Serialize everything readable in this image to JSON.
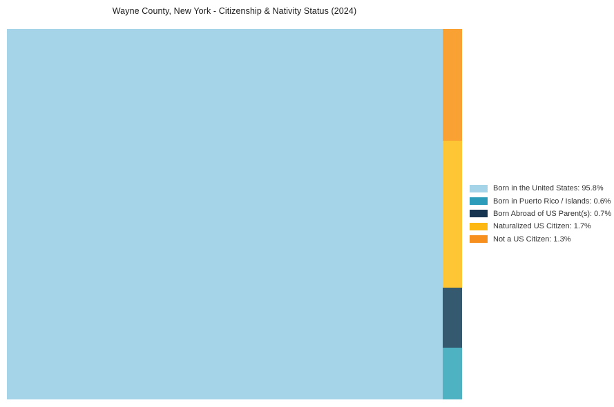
{
  "title": "Wayne County, New York - Citizenship & Nativity Status (2024)",
  "chart_data": {
    "type": "treemap",
    "title": "Wayne County, New York - Citizenship & Nativity Status (2024)",
    "unit": "%",
    "legend_position": "right",
    "layout_hint": "single large block for largest category on left; remaining categories stacked vertically in a narrow column on the right, ordered bottom-to-top in legend order",
    "series": [
      {
        "name": "Born in the United States",
        "value": 95.8,
        "label": "Born in the United States: 95.8%",
        "legend_color": "#a5d3e8",
        "chart_color": "#a5d3e8"
      },
      {
        "name": "Born in Puerto Rico / Islands",
        "value": 0.6,
        "label": "Born in Puerto Rico / Islands: 0.6%",
        "legend_color": "#2d9cba",
        "chart_color": "#4fb2c3"
      },
      {
        "name": "Born Abroad of US Parent(s)",
        "value": 0.7,
        "label": "Born Abroad of US Parent(s): 0.7%",
        "legend_color": "#16344f",
        "chart_color": "#35596e"
      },
      {
        "name": "Naturalized US Citizen",
        "value": 1.7,
        "label": "Naturalized US Citizen: 1.7%",
        "legend_color": "#fdb813",
        "chart_color": "#fec535"
      },
      {
        "name": "Not a US Citizen",
        "value": 1.3,
        "label": "Not a US Citizen: 1.3%",
        "legend_color": "#f78f1e",
        "chart_color": "#f9a233"
      }
    ]
  }
}
